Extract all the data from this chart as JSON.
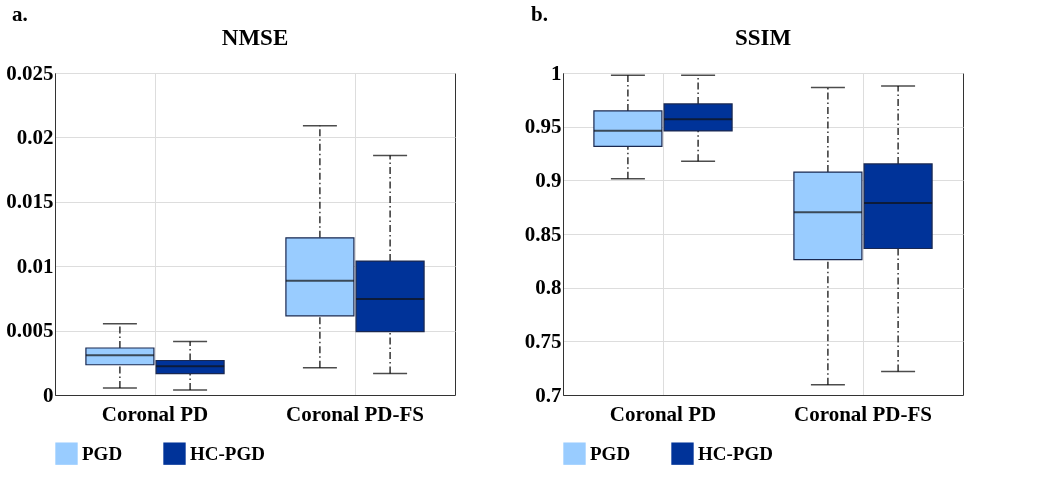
{
  "chart_data": [
    {
      "type": "box",
      "title": "NMSE",
      "annotations": [
        "a."
      ],
      "categories": [
        "Coronal PD",
        "Coronal PD-FS"
      ],
      "ylim": [
        0,
        0.025
      ],
      "yticks": [
        0,
        0.005,
        0.01,
        0.015,
        0.02,
        0.025
      ],
      "grid": true,
      "legend": "bottom",
      "series": [
        {
          "name": "PGD",
          "color": "#99ccff",
          "boxes": [
            {
              "low": 0.00054,
              "q1": 0.00235,
              "median": 0.00309,
              "q3": 0.00365,
              "high": 0.00554
            },
            {
              "low": 0.00212,
              "q1": 0.00615,
              "median": 0.00888,
              "q3": 0.0122,
              "high": 0.0209
            }
          ]
        },
        {
          "name": "HC-PGD",
          "color": "#003399",
          "boxes": [
            {
              "low": 0.00038,
              "q1": 0.00166,
              "median": 0.00224,
              "q3": 0.00268,
              "high": 0.00416
            },
            {
              "low": 0.00166,
              "q1": 0.00492,
              "median": 0.00745,
              "q3": 0.0104,
              "high": 0.0186
            }
          ]
        }
      ]
    },
    {
      "type": "box",
      "title": "SSIM",
      "annotations": [
        "b."
      ],
      "categories": [
        "Coronal PD",
        "Coronal PD-FS"
      ],
      "ylim": [
        0.7,
        1
      ],
      "yticks": [
        0.7,
        0.75,
        0.8,
        0.85,
        0.9,
        0.95,
        1
      ],
      "grid": true,
      "legend": "bottom",
      "series": [
        {
          "name": "PGD",
          "color": "#99ccff",
          "boxes": [
            {
              "low": 0.9015,
              "q1": 0.9316,
              "median": 0.9463,
              "q3": 0.9647,
              "high": 0.998
            },
            {
              "low": 0.7095,
              "q1": 0.8261,
              "median": 0.8702,
              "q3": 0.9077,
              "high": 0.9865
            }
          ]
        },
        {
          "name": "HC-PGD",
          "color": "#003399",
          "boxes": [
            {
              "low": 0.9178,
              "q1": 0.946,
              "median": 0.957,
              "q3": 0.9712,
              "high": 0.998
            },
            {
              "low": 0.722,
              "q1": 0.8365,
              "median": 0.8788,
              "q3": 0.9153,
              "high": 0.988
            }
          ]
        }
      ]
    }
  ]
}
